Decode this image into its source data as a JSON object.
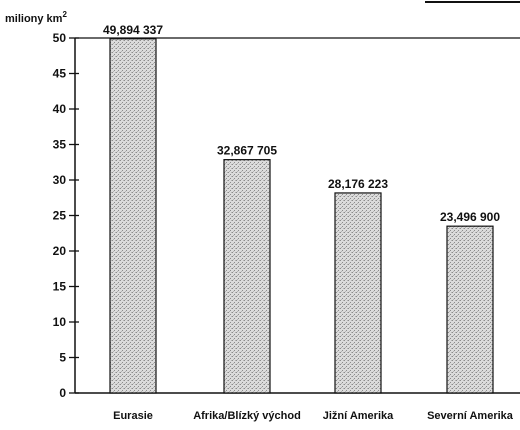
{
  "chart_data": {
    "type": "bar",
    "unit_label": "miliony km",
    "unit_superscript": "2",
    "categories": [
      "Eurasie",
      "Afrika/Blízký východ",
      "Jižní Amerika",
      "Severní Amerika"
    ],
    "values": [
      49.894337,
      32.867705,
      28.176223,
      23.4969
    ],
    "value_labels": [
      "49,894 337",
      "32,867 705",
      "28,176 223",
      "23,496 900"
    ],
    "y_ticks": [
      0,
      5,
      10,
      15,
      20,
      25,
      30,
      35,
      40,
      45,
      50
    ],
    "ylim": [
      0,
      50
    ],
    "grid": false,
    "bar_fill": "#d9d9d9",
    "bar_stroke": "#111111",
    "axis_color": "#111111"
  }
}
